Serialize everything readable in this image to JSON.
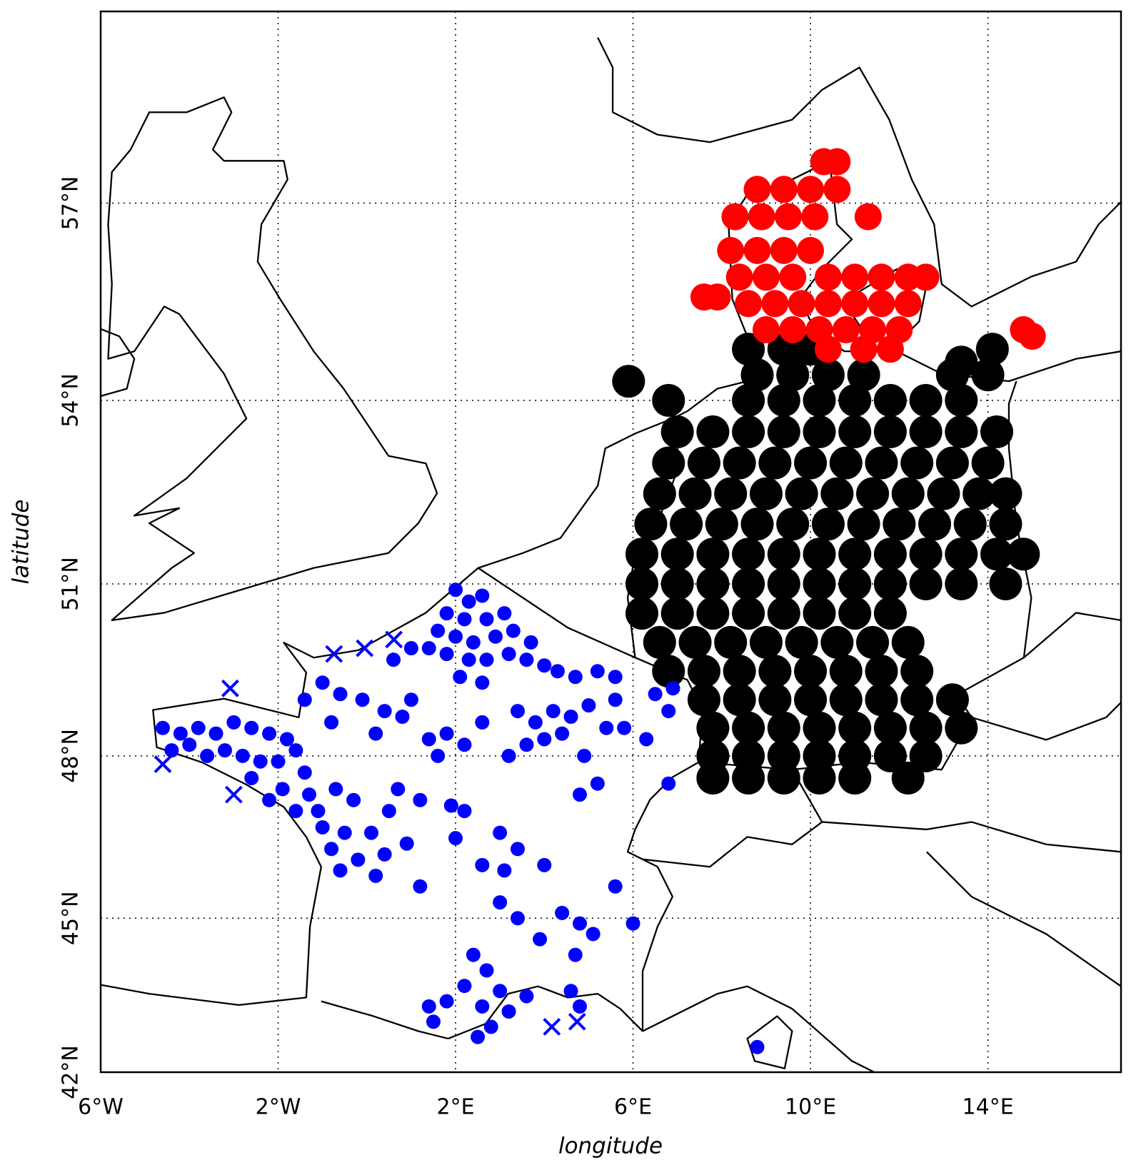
{
  "chart_data": {
    "type": "scatter",
    "xlabel": "longitude",
    "ylabel": "latitude",
    "xlim": [
      -6,
      17
    ],
    "ylim": [
      42,
      59.7
    ],
    "yscale": "mercator",
    "grid": true,
    "xticks": [
      {
        "value": -6,
        "label": "6°W"
      },
      {
        "value": -2,
        "label": "2°W"
      },
      {
        "value": 2,
        "label": "2°E"
      },
      {
        "value": 6,
        "label": "6°E"
      },
      {
        "value": 10,
        "label": "10°E"
      },
      {
        "value": 14,
        "label": "14°E"
      }
    ],
    "yticks": [
      {
        "value": 42,
        "label": "42°N"
      },
      {
        "value": 45,
        "label": "45°N"
      },
      {
        "value": 48,
        "label": "48°N"
      },
      {
        "value": 51,
        "label": "51°N"
      },
      {
        "value": 54,
        "label": "54°N"
      },
      {
        "value": 57,
        "label": "57°N"
      }
    ],
    "series": [
      {
        "color": "#000000",
        "marker": "o",
        "x": [
          8.6,
          9.4,
          10.0,
          8.8,
          9.6,
          10.4,
          11.2,
          13.2,
          14.0,
          8.6,
          9.4,
          10.2,
          11.0,
          11.8,
          12.6,
          13.4,
          7.0,
          7.8,
          8.6,
          9.4,
          10.2,
          11.0,
          11.8,
          12.6,
          13.4,
          14.2,
          6.8,
          7.6,
          8.4,
          9.2,
          10.0,
          10.8,
          11.6,
          12.4,
          13.2,
          14.0,
          6.6,
          7.4,
          8.2,
          9.0,
          9.8,
          10.6,
          11.4,
          12.2,
          13.0,
          13.8,
          14.4,
          6.4,
          7.2,
          8.0,
          8.8,
          9.6,
          10.4,
          11.2,
          12.0,
          12.8,
          13.6,
          14.4,
          6.2,
          7.0,
          7.8,
          8.6,
          9.4,
          10.2,
          11.0,
          11.8,
          12.6,
          13.4,
          14.2,
          14.8,
          6.2,
          7.0,
          7.8,
          8.6,
          9.4,
          10.2,
          11.0,
          11.8,
          12.6,
          13.4,
          14.4,
          6.2,
          7.0,
          7.8,
          8.6,
          9.4,
          10.2,
          11.0,
          11.8,
          6.6,
          7.4,
          8.2,
          9.0,
          9.8,
          10.6,
          11.4,
          12.2,
          6.8,
          7.6,
          8.4,
          9.2,
          10.0,
          10.8,
          11.6,
          12.4,
          7.6,
          8.4,
          9.2,
          10.0,
          10.8,
          11.6,
          12.4,
          13.2,
          7.8,
          8.6,
          9.4,
          10.2,
          11.0,
          11.8,
          12.6,
          13.4,
          7.8,
          8.6,
          9.4,
          10.2,
          11.0,
          11.8,
          12.6,
          7.8,
          8.6,
          9.4,
          10.2,
          11.0,
          12.2,
          5.9,
          6.8,
          14.1,
          13.4
        ],
        "y": [
          54.8,
          54.8,
          54.8,
          54.4,
          54.4,
          54.4,
          54.4,
          54.4,
          54.4,
          54.0,
          54.0,
          54.0,
          54.0,
          54.0,
          54.0,
          54.0,
          53.5,
          53.5,
          53.5,
          53.5,
          53.5,
          53.5,
          53.5,
          53.5,
          53.5,
          53.5,
          53.0,
          53.0,
          53.0,
          53.0,
          53.0,
          53.0,
          53.0,
          53.0,
          53.0,
          53.0,
          52.5,
          52.5,
          52.5,
          52.5,
          52.5,
          52.5,
          52.5,
          52.5,
          52.5,
          52.5,
          52.5,
          52.0,
          52.0,
          52.0,
          52.0,
          52.0,
          52.0,
          52.0,
          52.0,
          52.0,
          52.0,
          52.0,
          51.5,
          51.5,
          51.5,
          51.5,
          51.5,
          51.5,
          51.5,
          51.5,
          51.5,
          51.5,
          51.5,
          51.5,
          51.0,
          51.0,
          51.0,
          51.0,
          51.0,
          51.0,
          51.0,
          51.0,
          51.0,
          51.0,
          51.0,
          50.5,
          50.5,
          50.5,
          50.5,
          50.5,
          50.5,
          50.5,
          50.5,
          50.0,
          50.0,
          50.0,
          50.0,
          50.0,
          50.0,
          50.0,
          50.0,
          49.5,
          49.5,
          49.5,
          49.5,
          49.5,
          49.5,
          49.5,
          49.5,
          49.0,
          49.0,
          49.0,
          49.0,
          49.0,
          49.0,
          49.0,
          49.0,
          48.5,
          48.5,
          48.5,
          48.5,
          48.5,
          48.5,
          48.5,
          48.5,
          48.0,
          48.0,
          48.0,
          48.0,
          48.0,
          48.0,
          48.0,
          47.6,
          47.6,
          47.6,
          47.6,
          47.6,
          47.6,
          54.3,
          54.0,
          54.8,
          54.6
        ]
      },
      {
        "color": "#ff0000",
        "marker": "o",
        "x": [
          10.3,
          10.6,
          8.8,
          9.4,
          10.0,
          10.6,
          8.3,
          8.9,
          9.5,
          10.1,
          11.3,
          8.2,
          8.8,
          9.4,
          10.0,
          8.4,
          9.0,
          9.6,
          10.4,
          11.0,
          11.6,
          12.2,
          12.6,
          8.6,
          9.2,
          9.8,
          10.4,
          11.0,
          11.6,
          12.2,
          9.0,
          9.6,
          10.2,
          10.8,
          11.4,
          12.0,
          10.4,
          11.2,
          11.8,
          7.6,
          7.9,
          14.8,
          15.0
        ],
        "y": [
          57.6,
          57.6,
          57.2,
          57.2,
          57.2,
          57.2,
          56.8,
          56.8,
          56.8,
          56.8,
          56.8,
          56.3,
          56.3,
          56.3,
          56.3,
          55.9,
          55.9,
          55.9,
          55.9,
          55.9,
          55.9,
          55.9,
          55.9,
          55.5,
          55.5,
          55.5,
          55.5,
          55.5,
          55.5,
          55.5,
          55.1,
          55.1,
          55.1,
          55.1,
          55.1,
          55.1,
          54.8,
          54.8,
          54.8,
          55.6,
          55.6,
          55.1,
          55.0
        ]
      },
      {
        "color": "#0000ff",
        "marker": "o",
        "x": [
          2.0,
          2.3,
          2.6,
          1.8,
          2.2,
          2.7,
          3.1,
          1.6,
          2.0,
          2.4,
          2.9,
          3.3,
          3.7,
          1.4,
          1.8,
          2.3,
          2.7,
          3.2,
          3.6,
          4.0,
          1.0,
          0.6,
          2.1,
          2.6,
          4.3,
          4.7,
          5.2,
          5.6,
          -1.0,
          -1.4,
          -0.6,
          -0.1,
          0.4,
          -0.8,
          0.2,
          0.8,
          1.0,
          -4.6,
          -4.2,
          -3.8,
          -3.4,
          -3.0,
          -2.6,
          -2.2,
          -1.8,
          -4.4,
          -4.0,
          -3.6,
          -3.2,
          -2.8,
          -2.4,
          -2.0,
          -1.6,
          -1.4,
          -2.6,
          -1.9,
          -1.3,
          -2.2,
          -1.6,
          -1.1,
          -0.7,
          -0.3,
          -1.0,
          -0.5,
          0.1,
          0.5,
          -0.8,
          -0.2,
          0.4,
          0.9,
          -0.6,
          0.2,
          1.2,
          0.7,
          1.4,
          1.8,
          2.2,
          2.6,
          1.6,
          1.9,
          2.2,
          1.2,
          2.0,
          2.6,
          3.0,
          3.4,
          3.1,
          3.4,
          3.8,
          4.2,
          4.6,
          5.0,
          5.4,
          5.8,
          3.6,
          4.0,
          4.4,
          3.2,
          4.9,
          5.2,
          4.8,
          5.6,
          6.5,
          6.8,
          6.9,
          6.3,
          6.8,
          4.0,
          3.0,
          3.4,
          3.9,
          4.4,
          4.8,
          5.1,
          4.7,
          5.6,
          6.0,
          2.4,
          2.7,
          3.0,
          2.2,
          1.8,
          1.4,
          2.6,
          3.2,
          2.8,
          2.5,
          1.5,
          4.6,
          3.6,
          4.8,
          8.8
        ],
        "y": [
          50.9,
          50.7,
          50.8,
          50.5,
          50.4,
          50.4,
          50.5,
          50.2,
          50.1,
          50.0,
          50.1,
          50.2,
          50.0,
          49.9,
          49.8,
          49.7,
          49.7,
          49.8,
          49.7,
          49.6,
          49.9,
          49.7,
          49.4,
          49.3,
          49.5,
          49.4,
          49.5,
          49.4,
          49.3,
          49.0,
          49.1,
          49.0,
          48.8,
          48.6,
          48.4,
          48.7,
          49.0,
          48.5,
          48.4,
          48.5,
          48.4,
          48.6,
          48.5,
          48.4,
          48.3,
          48.1,
          48.2,
          48.0,
          48.1,
          48.0,
          47.9,
          47.9,
          48.1,
          47.7,
          47.6,
          47.4,
          47.3,
          47.2,
          47.0,
          47.0,
          47.4,
          47.2,
          46.7,
          46.6,
          46.6,
          47.0,
          46.3,
          46.1,
          46.2,
          46.4,
          45.9,
          45.8,
          45.6,
          47.4,
          48.3,
          48.4,
          48.2,
          48.6,
          48.0,
          47.1,
          47.0,
          47.2,
          46.5,
          46.0,
          46.6,
          46.3,
          45.9,
          48.8,
          48.6,
          48.8,
          48.7,
          48.9,
          48.5,
          48.5,
          48.2,
          48.3,
          48.4,
          48.0,
          48.0,
          47.5,
          47.3,
          49.0,
          49.1,
          48.8,
          49.2,
          48.3,
          47.5,
          46.0,
          45.3,
          45.0,
          44.6,
          45.1,
          44.9,
          44.7,
          44.3,
          45.6,
          44.9,
          44.3,
          44.0,
          43.6,
          43.7,
          43.4,
          43.3,
          43.3,
          43.2,
          42.9,
          42.7,
          43.0,
          43.6,
          43.5,
          43.3,
          42.5
        ]
      },
      {
        "color": "#0000ff",
        "marker": "x",
        "x": [
          -0.74,
          -0.05,
          0.61,
          -3.08,
          -4.6,
          -3.0,
          4.17,
          4.74
        ],
        "y": [
          49.8,
          49.9,
          50.05,
          49.2,
          47.85,
          47.3,
          42.9,
          43.0
        ]
      }
    ]
  }
}
